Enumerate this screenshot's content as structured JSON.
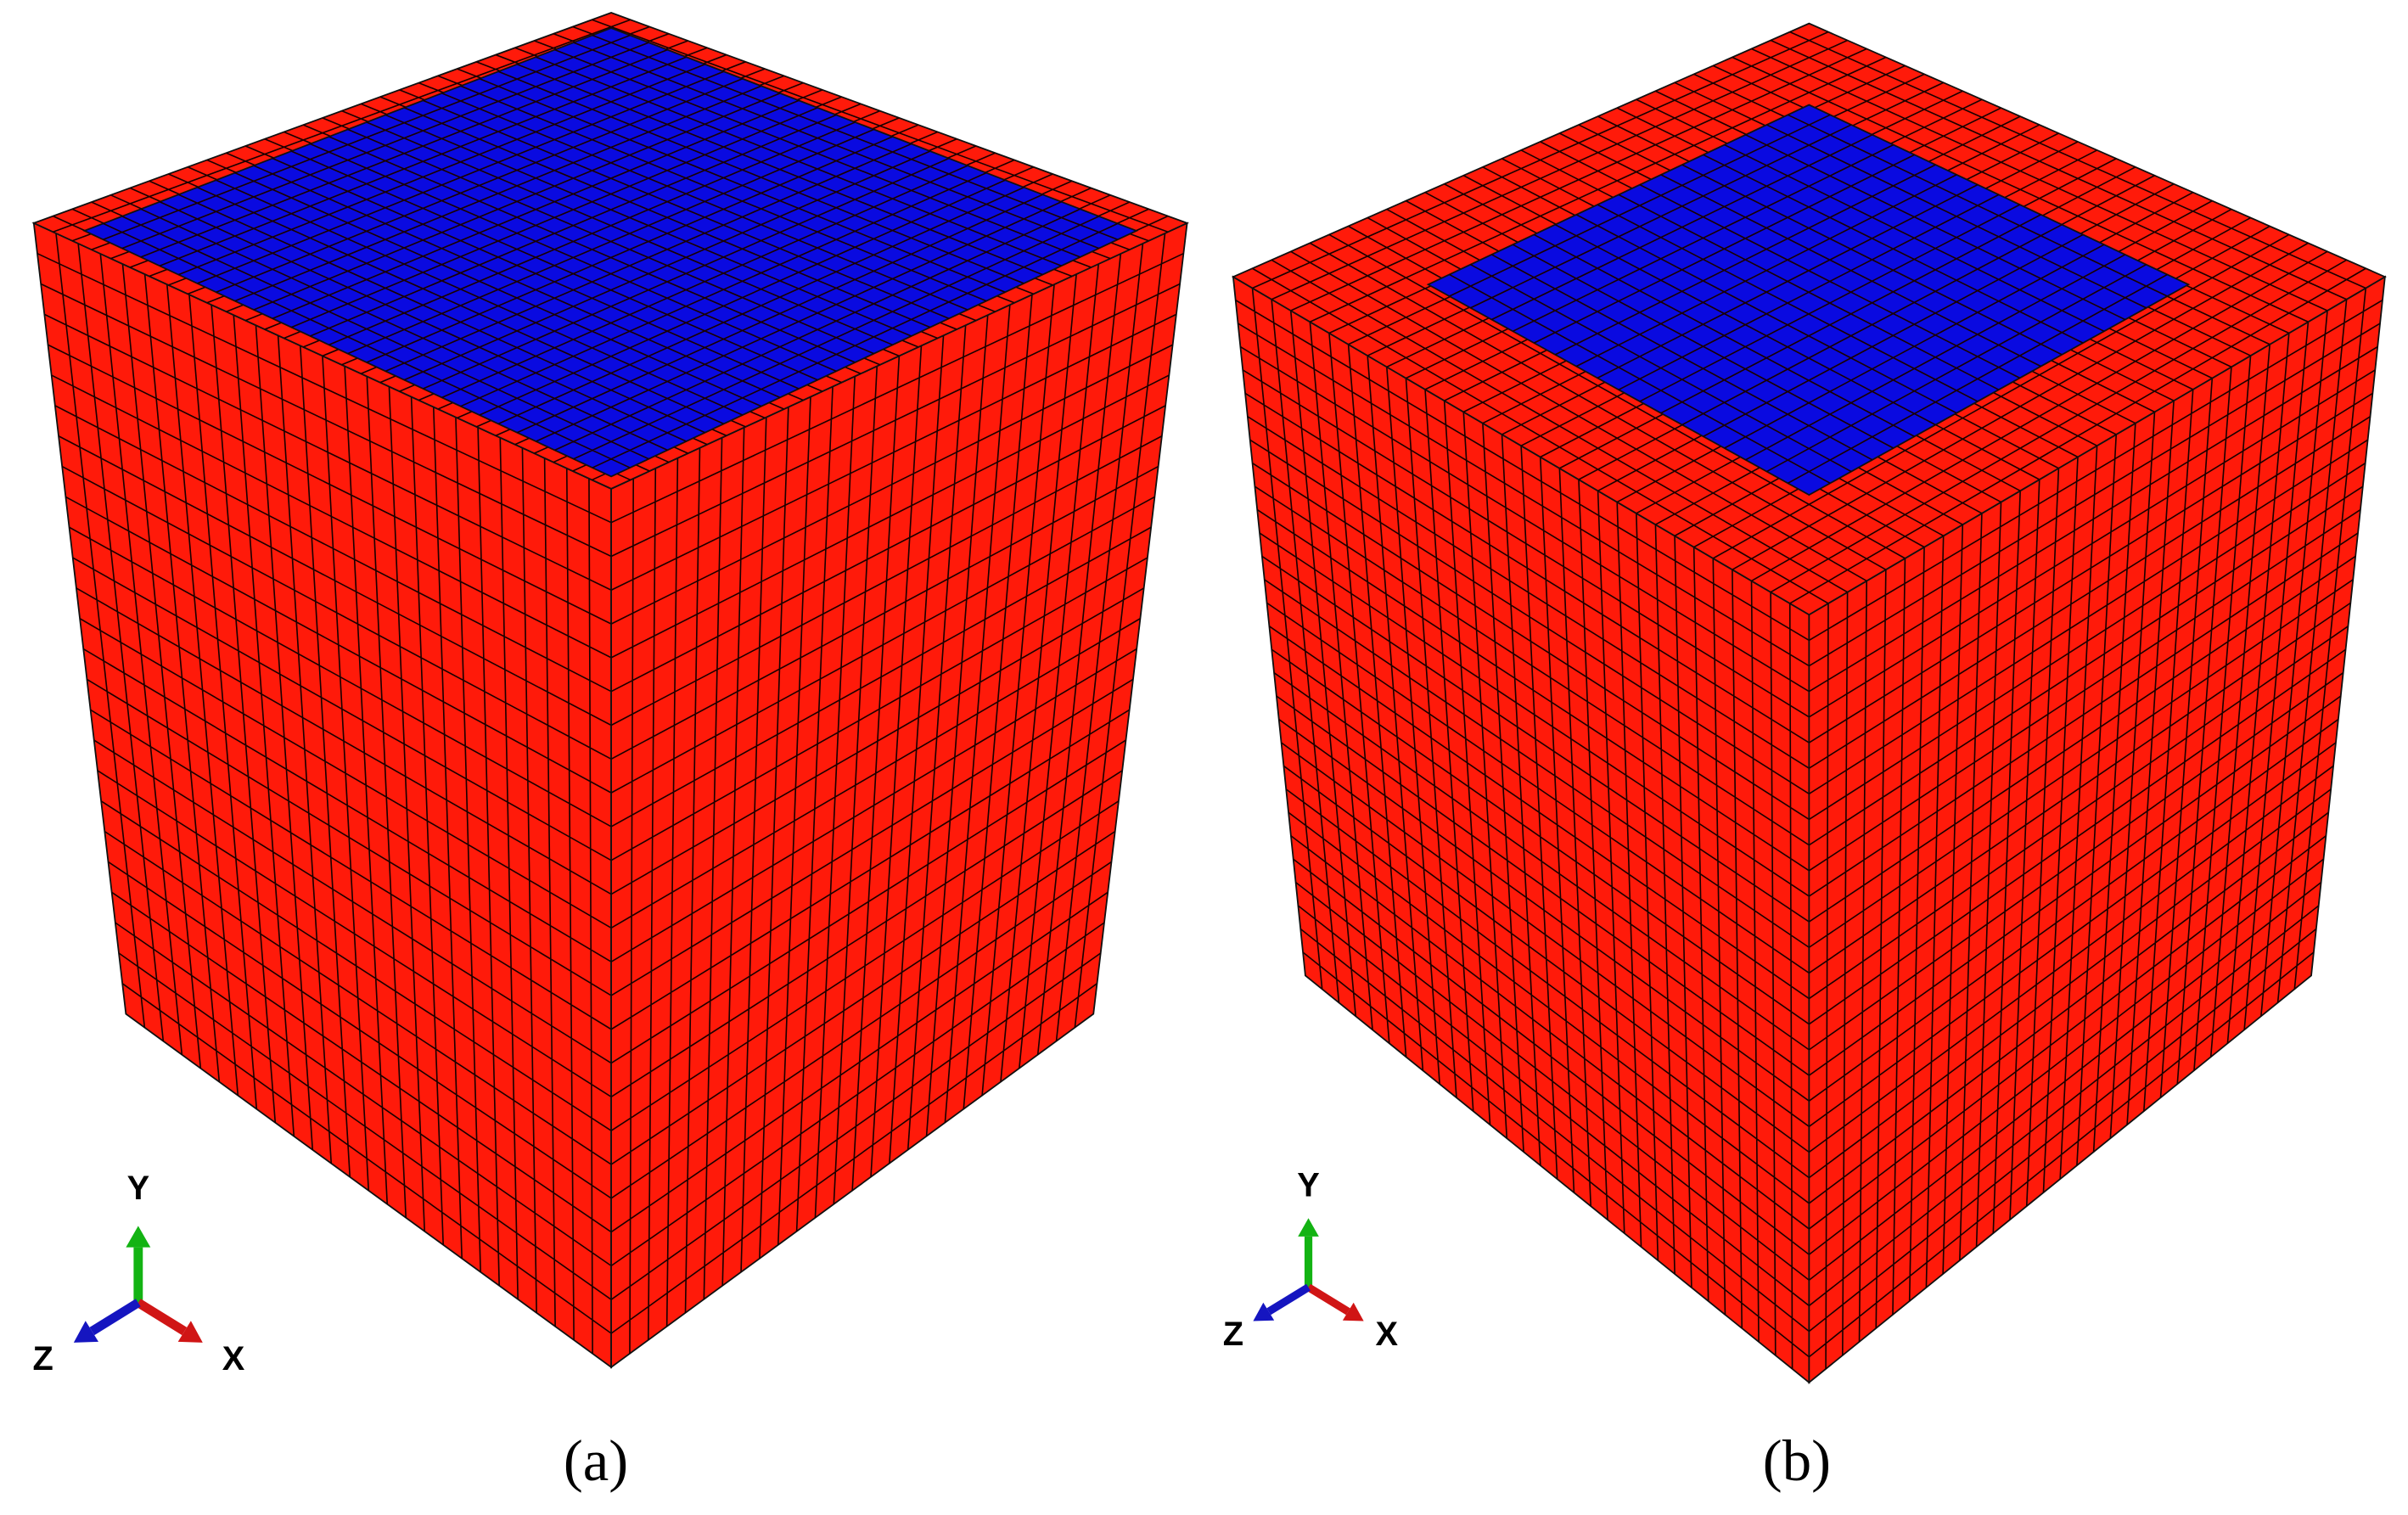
{
  "panels": [
    {
      "label": "(a)",
      "axes": {
        "x": "X",
        "y": "Y",
        "z": "Z"
      }
    },
    {
      "label": "(b)",
      "axes": {
        "x": "X",
        "y": "Y",
        "z": "Z"
      }
    }
  ]
}
